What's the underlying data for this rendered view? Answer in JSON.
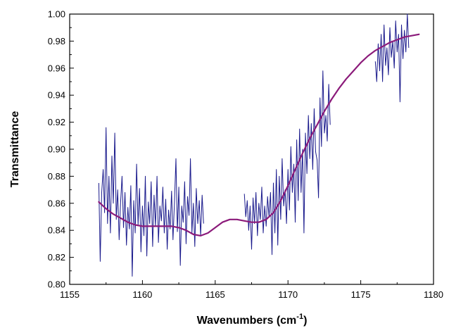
{
  "chart_data": {
    "type": "line",
    "xlabel": "Wavenumbers (cm",
    "xlabel_superscript": "-1",
    "xlabel_suffix": ")",
    "ylabel": "Transmittance",
    "xlim": [
      1155,
      1180
    ],
    "ylim": [
      0.8,
      1.0
    ],
    "x_ticks": [
      1155,
      1160,
      1165,
      1170,
      1175,
      1180
    ],
    "x_tick_labels": [
      "1155",
      "1160",
      "1165",
      "1170",
      "1175",
      "1180"
    ],
    "y_ticks": [
      0.8,
      0.82,
      0.84,
      0.86,
      0.88,
      0.9,
      0.92,
      0.94,
      0.96,
      0.98,
      1.0
    ],
    "y_tick_labels": [
      "0.80",
      "0.82",
      "0.84",
      "0.86",
      "0.88",
      "0.90",
      "0.92",
      "0.94",
      "0.96",
      "0.98",
      "1.00"
    ],
    "grid": false,
    "series": [
      {
        "color": "#1a1a8c",
        "style": "noisy-measured",
        "segments": [
          {
            "x": [
              1157.0,
              1157.1,
              1157.2,
              1157.3,
              1157.4,
              1157.5,
              1157.6,
              1157.7,
              1157.8,
              1157.9,
              1158.0,
              1158.1,
              1158.2,
              1158.3,
              1158.4,
              1158.5,
              1158.6,
              1158.7,
              1158.8,
              1158.9,
              1159.0,
              1159.1,
              1159.2,
              1159.3,
              1159.4,
              1159.5,
              1159.6,
              1159.7,
              1159.8,
              1159.9,
              1160.0,
              1160.1,
              1160.2,
              1160.3,
              1160.4,
              1160.5,
              1160.6,
              1160.7,
              1160.8,
              1160.9,
              1161.0,
              1161.1,
              1161.2,
              1161.3,
              1161.4,
              1161.5,
              1161.6,
              1161.7,
              1161.8,
              1161.9,
              1162.0,
              1162.1,
              1162.2,
              1162.3,
              1162.4,
              1162.5,
              1162.6,
              1162.7,
              1162.8,
              1162.9,
              1163.0,
              1163.1,
              1163.2,
              1163.3,
              1163.4,
              1163.5,
              1163.6,
              1163.7,
              1163.8,
              1163.9,
              1164.0,
              1164.1,
              1164.2
            ],
            "y": [
              0.875,
              0.817,
              0.868,
              0.885,
              0.853,
              0.916,
              0.845,
              0.88,
              0.838,
              0.895,
              0.86,
              0.912,
              0.848,
              0.87,
              0.833,
              0.861,
              0.88,
              0.842,
              0.868,
              0.829,
              0.857,
              0.841,
              0.873,
              0.806,
              0.862,
              0.838,
              0.889,
              0.844,
              0.871,
              0.824,
              0.858,
              0.836,
              0.88,
              0.821,
              0.861,
              0.845,
              0.876,
              0.828,
              0.866,
              0.843,
              0.88,
              0.831,
              0.858,
              0.847,
              0.872,
              0.838,
              0.863,
              0.826,
              0.855,
              0.841,
              0.869,
              0.833,
              0.861,
              0.893,
              0.839,
              0.872,
              0.814,
              0.858,
              0.846,
              0.876,
              0.83,
              0.865,
              0.851,
              0.893,
              0.838,
              0.86,
              0.828,
              0.871,
              0.845,
              0.862,
              0.836,
              0.866,
              0.845
            ]
          },
          {
            "x": [
              1167.0,
              1167.1,
              1167.2,
              1167.3,
              1167.4,
              1167.5,
              1167.6,
              1167.7,
              1167.8,
              1167.9,
              1168.0,
              1168.1,
              1168.2,
              1168.3,
              1168.4,
              1168.5,
              1168.6,
              1168.7,
              1168.8,
              1168.9,
              1169.0,
              1169.1,
              1169.2,
              1169.3,
              1169.4,
              1169.5,
              1169.6,
              1169.7,
              1169.8,
              1169.9,
              1170.0,
              1170.1,
              1170.2,
              1170.3,
              1170.4,
              1170.5,
              1170.6,
              1170.7,
              1170.8,
              1170.9,
              1171.0,
              1171.1,
              1171.2,
              1171.3,
              1171.4,
              1171.5,
              1171.6,
              1171.7,
              1171.8,
              1171.9,
              1172.0,
              1172.1,
              1172.2,
              1172.3,
              1172.4,
              1172.5,
              1172.6,
              1172.7,
              1172.8,
              1172.9
            ],
            "y": [
              0.867,
              0.85,
              0.862,
              0.84,
              0.858,
              0.826,
              0.864,
              0.845,
              0.868,
              0.836,
              0.86,
              0.848,
              0.872,
              0.838,
              0.858,
              0.843,
              0.865,
              0.85,
              0.868,
              0.822,
              0.875,
              0.838,
              0.885,
              0.829,
              0.88,
              0.848,
              0.893,
              0.858,
              0.87,
              0.845,
              0.885,
              0.855,
              0.902,
              0.868,
              0.889,
              0.846,
              0.907,
              0.862,
              0.915,
              0.868,
              0.9,
              0.838,
              0.912,
              0.882,
              0.925,
              0.893,
              0.919,
              0.885,
              0.93,
              0.898,
              0.892,
              0.864,
              0.938,
              0.902,
              0.958,
              0.912,
              0.925,
              0.906,
              0.948,
              0.918
            ]
          },
          {
            "x": [
              1176.0,
              1176.1,
              1176.2,
              1176.3,
              1176.4,
              1176.5,
              1176.6,
              1176.7,
              1176.8,
              1176.9,
              1177.0,
              1177.1,
              1177.2,
              1177.3,
              1177.4,
              1177.5,
              1177.6,
              1177.7,
              1177.8,
              1177.9,
              1178.0,
              1178.1,
              1178.2,
              1178.3
            ],
            "y": [
              0.965,
              0.95,
              0.978,
              0.958,
              0.985,
              0.95,
              0.992,
              0.962,
              0.975,
              0.955,
              0.99,
              0.968,
              0.98,
              0.96,
              0.995,
              0.972,
              0.985,
              0.935,
              0.992,
              0.967,
              0.988,
              0.972,
              1.0,
              0.975
            ]
          }
        ]
      },
      {
        "color": "#8b1a7a",
        "style": "smooth-fit",
        "x": [
          1157.0,
          1157.5,
          1158.0,
          1158.5,
          1159.0,
          1159.5,
          1160.0,
          1160.5,
          1161.0,
          1161.5,
          1162.0,
          1162.5,
          1163.0,
          1163.5,
          1164.0,
          1164.5,
          1165.0,
          1165.5,
          1166.0,
          1166.5,
          1167.0,
          1167.5,
          1168.0,
          1168.5,
          1169.0,
          1169.5,
          1170.0,
          1170.5,
          1171.0,
          1171.5,
          1172.0,
          1172.5,
          1173.0,
          1173.5,
          1174.0,
          1174.5,
          1175.0,
          1175.5,
          1176.0,
          1176.5,
          1177.0,
          1177.5,
          1178.0,
          1178.5,
          1179.0
        ],
        "y": [
          0.861,
          0.856,
          0.852,
          0.849,
          0.846,
          0.844,
          0.843,
          0.843,
          0.843,
          0.843,
          0.843,
          0.842,
          0.84,
          0.837,
          0.836,
          0.838,
          0.842,
          0.846,
          0.848,
          0.848,
          0.847,
          0.846,
          0.846,
          0.848,
          0.853,
          0.862,
          0.873,
          0.885,
          0.897,
          0.908,
          0.918,
          0.928,
          0.937,
          0.945,
          0.952,
          0.958,
          0.964,
          0.969,
          0.973,
          0.976,
          0.979,
          0.981,
          0.983,
          0.984,
          0.985
        ]
      }
    ]
  }
}
